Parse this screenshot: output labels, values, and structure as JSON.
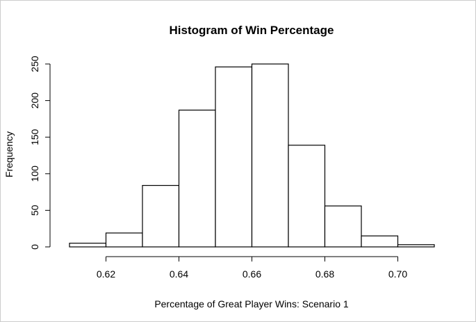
{
  "chart_data": {
    "type": "bar",
    "title": "Histogram of Win Percentage",
    "xlabel": "Percentage of Great Player Wins: Scenario 1",
    "ylabel": "Frequency",
    "bins": [
      {
        "start": 0.61,
        "end": 0.62,
        "count": 5
      },
      {
        "start": 0.62,
        "end": 0.63,
        "count": 19
      },
      {
        "start": 0.63,
        "end": 0.64,
        "count": 84
      },
      {
        "start": 0.64,
        "end": 0.65,
        "count": 187
      },
      {
        "start": 0.65,
        "end": 0.66,
        "count": 246
      },
      {
        "start": 0.66,
        "end": 0.67,
        "count": 250
      },
      {
        "start": 0.67,
        "end": 0.68,
        "count": 139
      },
      {
        "start": 0.68,
        "end": 0.69,
        "count": 56
      },
      {
        "start": 0.69,
        "end": 0.7,
        "count": 15
      },
      {
        "start": 0.7,
        "end": 0.71,
        "count": 3
      }
    ],
    "xlim": [
      0.61,
      0.71
    ],
    "ylim": [
      0,
      250
    ],
    "x_ticks": [
      "0.62",
      "0.64",
      "0.66",
      "0.68",
      "0.70"
    ],
    "y_ticks": [
      "0",
      "50",
      "100",
      "150",
      "200",
      "250"
    ],
    "grid": false,
    "legend": "none",
    "colors": {
      "bar_fill": "#ffffff",
      "bar_stroke": "#000000"
    }
  }
}
